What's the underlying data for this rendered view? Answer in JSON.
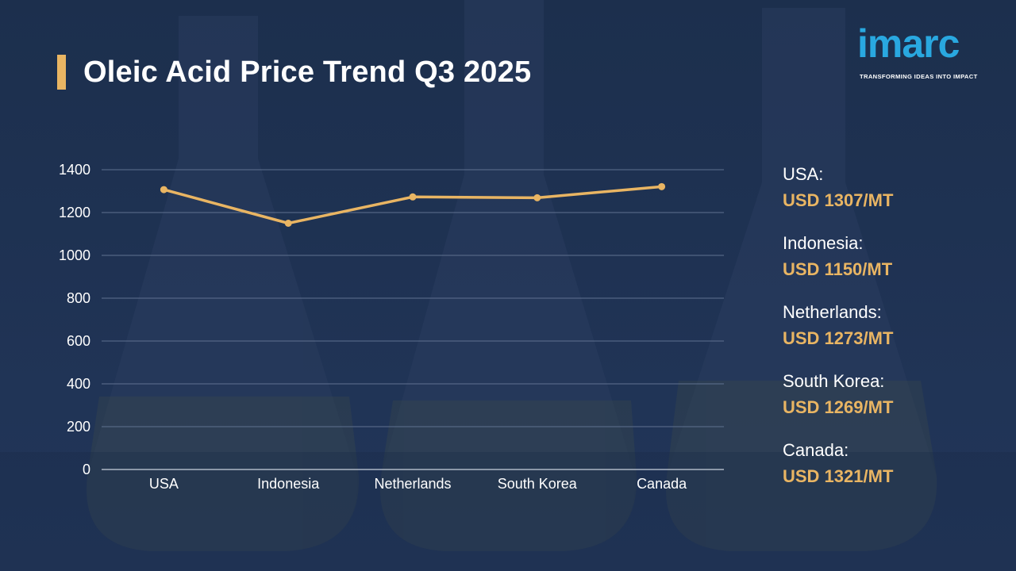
{
  "title": "Oleic Acid Price Trend Q3 2025",
  "logo": {
    "word": "imarc",
    "tagline": "TRANSFORMING IDEAS INTO IMPACT"
  },
  "colors": {
    "background": "#1e3150",
    "accent": "#e9b563",
    "logo_blue": "#29a8e0",
    "grid": "#5f7190"
  },
  "chart_data": {
    "type": "line",
    "title": "Oleic Acid Price Trend Q3 2025",
    "xlabel": "",
    "ylabel": "",
    "categories": [
      "USA",
      "Indonesia",
      "Netherlands",
      "South Korea",
      "Canada"
    ],
    "values": [
      1307,
      1150,
      1273,
      1269,
      1321
    ],
    "ylim": [
      0,
      1400
    ],
    "yticks": [
      0,
      200,
      400,
      600,
      800,
      1000,
      1200,
      1400
    ],
    "grid": true,
    "legend": "none"
  },
  "legend_items": [
    {
      "country": "USA:",
      "value": "USD 1307/MT"
    },
    {
      "country": "Indonesia:",
      "value": "USD 1150/MT"
    },
    {
      "country": "Netherlands:",
      "value": "USD 1273/MT"
    },
    {
      "country": "South Korea:",
      "value": "USD 1269/MT"
    },
    {
      "country": "Canada:",
      "value": "USD 1321/MT"
    }
  ]
}
